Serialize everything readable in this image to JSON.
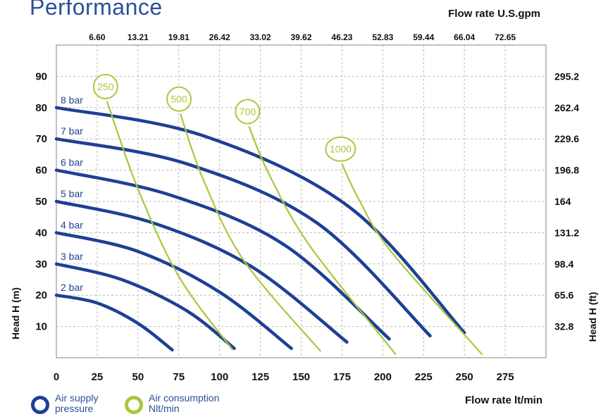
{
  "page_title": "Performance",
  "colors": {
    "pressure": "#1e3f95",
    "air": "#a8c83a",
    "title": "#2d4f9a",
    "grid": "#b9b9b9"
  },
  "legend": {
    "pressure": {
      "line1": "Air supply",
      "line2": "pressure",
      "icon": "ring-icon-blue"
    },
    "air": {
      "line1": "Air consumption",
      "line2": "Nlt/min",
      "icon": "ring-icon-green"
    }
  },
  "chart_data": {
    "type": "line",
    "title": "Performance",
    "xlabel": "Flow rate  lt/min",
    "x2label": "Flow rate U.S.gpm",
    "ylabel": "Head H (m)",
    "y2label": "Head H (ft)",
    "xlim": [
      0,
      300
    ],
    "ylim": [
      0,
      100
    ],
    "grid": true,
    "x_ticks": [
      0,
      25,
      50,
      75,
      100,
      125,
      150,
      175,
      200,
      225,
      250,
      275
    ],
    "y_ticks": [
      10,
      20,
      30,
      40,
      50,
      60,
      70,
      80,
      90
    ],
    "x2_ticks": [
      "6.60",
      "13.21",
      "19.81",
      "26.42",
      "33.02",
      "39.62",
      "46.23",
      "52.83",
      "59.44",
      "66.04",
      "72.65"
    ],
    "y2_ticks": [
      "32.8",
      "65.6",
      "98.4",
      "131.2",
      "164",
      "196.8",
      "229.6",
      "262.4",
      "295.2"
    ],
    "pressure_series": [
      {
        "name": "2 bar",
        "points": [
          [
            0,
            20
          ],
          [
            25,
            17.5
          ],
          [
            50,
            11
          ],
          [
            71,
            2.5
          ]
        ]
      },
      {
        "name": "3 bar",
        "points": [
          [
            0,
            30
          ],
          [
            40,
            25
          ],
          [
            80,
            15
          ],
          [
            109,
            3
          ]
        ]
      },
      {
        "name": "4 bar",
        "points": [
          [
            0,
            40
          ],
          [
            50,
            34
          ],
          [
            100,
            21
          ],
          [
            144,
            3
          ]
        ]
      },
      {
        "name": "5 bar",
        "points": [
          [
            0,
            50
          ],
          [
            60,
            43
          ],
          [
            120,
            29
          ],
          [
            178,
            5
          ]
        ]
      },
      {
        "name": "6 bar",
        "points": [
          [
            0,
            60
          ],
          [
            70,
            52
          ],
          [
            140,
            36
          ],
          [
            204,
            6
          ]
        ]
      },
      {
        "name": "7 bar",
        "points": [
          [
            0,
            70
          ],
          [
            80,
            62
          ],
          [
            160,
            43
          ],
          [
            229,
            7
          ]
        ]
      },
      {
        "name": "8 bar",
        "points": [
          [
            0,
            80
          ],
          [
            90,
            71
          ],
          [
            180,
            48
          ],
          [
            250,
            8
          ]
        ]
      }
    ],
    "air_series": [
      {
        "name": "250",
        "points": [
          [
            31,
            82
          ],
          [
            50,
            54
          ],
          [
            75,
            26
          ],
          [
            108,
            2.5
          ]
        ]
      },
      {
        "name": "500",
        "points": [
          [
            76,
            78
          ],
          [
            90,
            57
          ],
          [
            115,
            31
          ],
          [
            162,
            2
          ]
        ]
      },
      {
        "name": "700",
        "points": [
          [
            118,
            74
          ],
          [
            130,
            59
          ],
          [
            155,
            36
          ],
          [
            208,
            1
          ]
        ]
      },
      {
        "name": "1000",
        "points": [
          [
            175,
            62
          ],
          [
            185,
            51
          ],
          [
            205,
            34
          ],
          [
            261,
            1
          ]
        ]
      }
    ]
  }
}
